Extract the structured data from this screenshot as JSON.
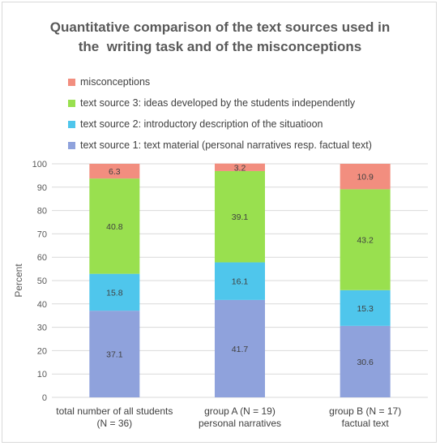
{
  "chart_data": {
    "type": "bar",
    "stacked": true,
    "title_lines": [
      "Quantitative comparison of the text sources used in",
      "the  writing task and of the misconceptions"
    ],
    "ylabel": "Percent",
    "ylim": [
      0,
      100
    ],
    "ytick_step": 10,
    "grid": true,
    "legend_position": "top-left",
    "categories": [
      [
        "total number of all students",
        "(N = 36)"
      ],
      [
        "group A (N = 19)",
        "personal narratives"
      ],
      [
        "group B (N = 17)",
        "factual text"
      ]
    ],
    "series": [
      {
        "name": "text source 1: text material (personal narratives resp. factual text)",
        "color": "#8fa2dc",
        "values": [
          37.1,
          41.7,
          30.6
        ]
      },
      {
        "name": "text source 2: introductory description of the situatioon",
        "color": "#4fc6ec",
        "values": [
          15.8,
          16.1,
          15.3
        ]
      },
      {
        "name": "text source 3: ideas developed by the students independently",
        "color": "#99e04f",
        "values": [
          40.8,
          39.1,
          43.2
        ]
      },
      {
        "name": "misconceptions",
        "color": "#f28e7f",
        "values": [
          6.3,
          3.2,
          10.9
        ]
      }
    ]
  }
}
